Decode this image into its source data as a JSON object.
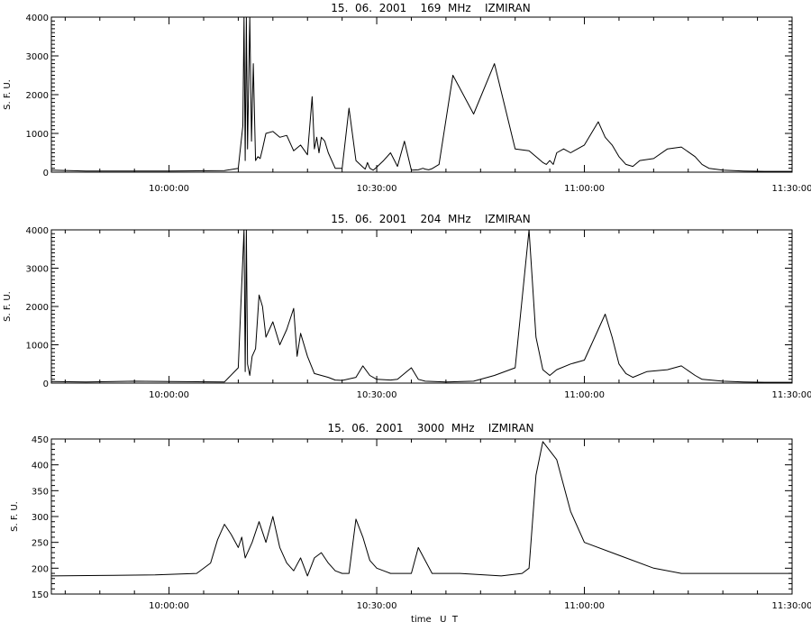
{
  "chart_data": [
    {
      "type": "line",
      "title": "15.  06.  2001    169  MHz    IZMIRAN",
      "ylabel": "S. F. U.",
      "xlabel": "",
      "xlim": [
        "09:43:00",
        "11:30:00"
      ],
      "ylim": [
        0,
        4000
      ],
      "yticks": [
        0,
        1000,
        2000,
        3000,
        4000
      ],
      "xtick_labels": [
        "10:00:00",
        "10:30:00",
        "11:00:00",
        "11:30:00"
      ],
      "grid": false,
      "series": [
        {
          "x": [
            "09:43:00",
            "09:48:00",
            "09:55:00",
            "10:00:00",
            "10:08:00",
            "10:10:00",
            "10:10:40",
            "10:10:50",
            "10:11:00",
            "10:11:10",
            "10:11:20",
            "10:11:40",
            "10:11:55",
            "10:12:10",
            "10:12:30",
            "10:12:50",
            "10:13:10",
            "10:13:30",
            "10:14:00",
            "10:15:00",
            "10:16:00",
            "10:17:00",
            "10:18:00",
            "10:19:00",
            "10:20:00",
            "10:20:40",
            "10:21:00",
            "10:21:20",
            "10:21:40",
            "10:22:00",
            "10:22:30",
            "10:23:00",
            "10:24:00",
            "10:25:00",
            "10:26:00",
            "10:27:00",
            "10:28:00",
            "10:28:20",
            "10:28:40",
            "10:29:00",
            "10:29:30",
            "10:30:00",
            "10:31:00",
            "10:32:00",
            "10:33:00",
            "10:34:00",
            "10:35:00",
            "10:36:00",
            "10:36:40",
            "10:37:00",
            "10:37:30",
            "10:38:00",
            "10:39:00",
            "10:41:00",
            "10:44:00",
            "10:47:00",
            "10:50:00",
            "10:52:00",
            "10:53:00",
            "10:54:00",
            "10:54:30",
            "10:55:00",
            "10:55:30",
            "10:56:00",
            "10:57:00",
            "10:58:00",
            "11:00:00",
            "11:01:00",
            "11:02:00",
            "11:03:00",
            "11:04:00",
            "11:05:00",
            "11:06:00",
            "11:07:00",
            "11:08:00",
            "11:10:00",
            "11:12:00",
            "11:14:00",
            "11:16:00",
            "11:17:00",
            "11:18:00",
            "11:20:00",
            "11:23:00",
            "11:26:00",
            "11:28:00",
            "11:30:00"
          ],
          "y": [
            50,
            30,
            30,
            30,
            40,
            100,
            1200,
            4000,
            300,
            4000,
            600,
            4000,
            800,
            2800,
            300,
            400,
            350,
            600,
            1000,
            1050,
            900,
            950,
            550,
            700,
            450,
            1950,
            600,
            900,
            500,
            900,
            800,
            500,
            100,
            100,
            1650,
            300,
            130,
            80,
            250,
            100,
            50,
            130,
            300,
            500,
            150,
            800,
            50,
            60,
            100,
            80,
            60,
            90,
            200,
            2500,
            1500,
            2800,
            600,
            550,
            400,
            250,
            200,
            300,
            200,
            500,
            600,
            500,
            700,
            1000,
            1300,
            900,
            700,
            400,
            200,
            150,
            300,
            350,
            600,
            650,
            400,
            200,
            100,
            50,
            30,
            20,
            20,
            20
          ]
        }
      ]
    },
    {
      "type": "line",
      "title": "15.  06.  2001    204  MHz    IZMIRAN",
      "ylabel": "S. F. U.",
      "xlabel": "",
      "xlim": [
        "09:43:00",
        "11:30:00"
      ],
      "ylim": [
        0,
        4000
      ],
      "yticks": [
        0,
        1000,
        2000,
        3000,
        4000
      ],
      "xtick_labels": [
        "10:00:00",
        "10:30:00",
        "11:00:00",
        "11:30:00"
      ],
      "grid": false,
      "series": [
        {
          "x": [
            "09:43:00",
            "09:48:00",
            "09:55:00",
            "10:00:00",
            "10:08:00",
            "10:10:00",
            "10:10:50",
            "10:11:00",
            "10:11:10",
            "10:11:20",
            "10:11:40",
            "10:12:00",
            "10:12:30",
            "10:13:00",
            "10:13:30",
            "10:14:00",
            "10:15:00",
            "10:16:00",
            "10:17:00",
            "10:18:00",
            "10:18:30",
            "10:19:00",
            "10:20:00",
            "10:21:00",
            "10:22:00",
            "10:23:00",
            "10:24:00",
            "10:25:00",
            "10:27:00",
            "10:28:00",
            "10:29:00",
            "10:30:00",
            "10:32:00",
            "10:33:00",
            "10:35:00",
            "10:36:00",
            "10:37:00",
            "10:40:00",
            "10:44:00",
            "10:47:00",
            "10:50:00",
            "10:52:00",
            "10:53:00",
            "10:54:00",
            "10:55:00",
            "10:56:00",
            "10:58:00",
            "11:00:00",
            "11:01:00",
            "11:02:00",
            "11:03:00",
            "11:04:00",
            "11:05:00",
            "11:06:00",
            "11:07:00",
            "11:09:00",
            "11:12:00",
            "11:14:00",
            "11:16:00",
            "11:17:00",
            "11:20:00",
            "11:23:00",
            "11:26:00",
            "11:30:00"
          ],
          "y": [
            40,
            30,
            50,
            40,
            30,
            400,
            4000,
            300,
            4000,
            500,
            200,
            700,
            900,
            2300,
            2000,
            1200,
            1600,
            1000,
            1400,
            1950,
            700,
            1300,
            700,
            250,
            200,
            150,
            80,
            70,
            150,
            450,
            200,
            100,
            80,
            100,
            400,
            100,
            50,
            30,
            50,
            200,
            400,
            4000,
            1200,
            350,
            200,
            350,
            500,
            600,
            1000,
            1400,
            1800,
            1200,
            500,
            250,
            150,
            300,
            350,
            450,
            200,
            100,
            50,
            30,
            20,
            20
          ]
        }
      ]
    },
    {
      "type": "line",
      "title": "15.  06.  2001    3000  MHz    IZMIRAN",
      "ylabel": "S. F. U.",
      "xlabel": "time   U  T",
      "xlim": [
        "09:43:00",
        "11:30:00"
      ],
      "ylim": [
        150,
        450
      ],
      "yticks": [
        150,
        200,
        250,
        300,
        350,
        400,
        450
      ],
      "xtick_labels": [
        "10:00:00",
        "10:30:00",
        "11:00:00",
        "11:30:00"
      ],
      "grid": false,
      "series": [
        {
          "x": [
            "09:43:00",
            "09:50:00",
            "09:58:00",
            "10:04:00",
            "10:06:00",
            "10:07:00",
            "10:08:00",
            "10:09:00",
            "10:10:00",
            "10:10:30",
            "10:11:00",
            "10:12:00",
            "10:13:00",
            "10:14:00",
            "10:15:00",
            "10:16:00",
            "10:17:00",
            "10:18:00",
            "10:19:00",
            "10:20:00",
            "10:21:00",
            "10:22:00",
            "10:23:00",
            "10:24:00",
            "10:25:00",
            "10:26:00",
            "10:27:00",
            "10:28:00",
            "10:29:00",
            "10:30:00",
            "10:31:00",
            "10:32:00",
            "10:34:00",
            "10:35:00",
            "10:36:00",
            "10:38:00",
            "10:42:00",
            "10:48:00",
            "10:51:00",
            "10:52:00",
            "10:53:00",
            "10:54:00",
            "10:56:00",
            "10:58:00",
            "11:00:00",
            "11:05:00",
            "11:10:00",
            "11:14:00",
            "11:20:00",
            "11:30:00"
          ],
          "y": [
            185,
            186,
            187,
            190,
            210,
            255,
            285,
            265,
            240,
            260,
            220,
            250,
            290,
            250,
            300,
            240,
            210,
            195,
            220,
            185,
            220,
            230,
            210,
            195,
            190,
            190,
            295,
            260,
            215,
            200,
            195,
            190,
            190,
            190,
            240,
            190,
            190,
            185,
            190,
            200,
            380,
            445,
            410,
            310,
            250,
            225,
            200,
            190,
            190,
            190
          ]
        }
      ]
    }
  ]
}
